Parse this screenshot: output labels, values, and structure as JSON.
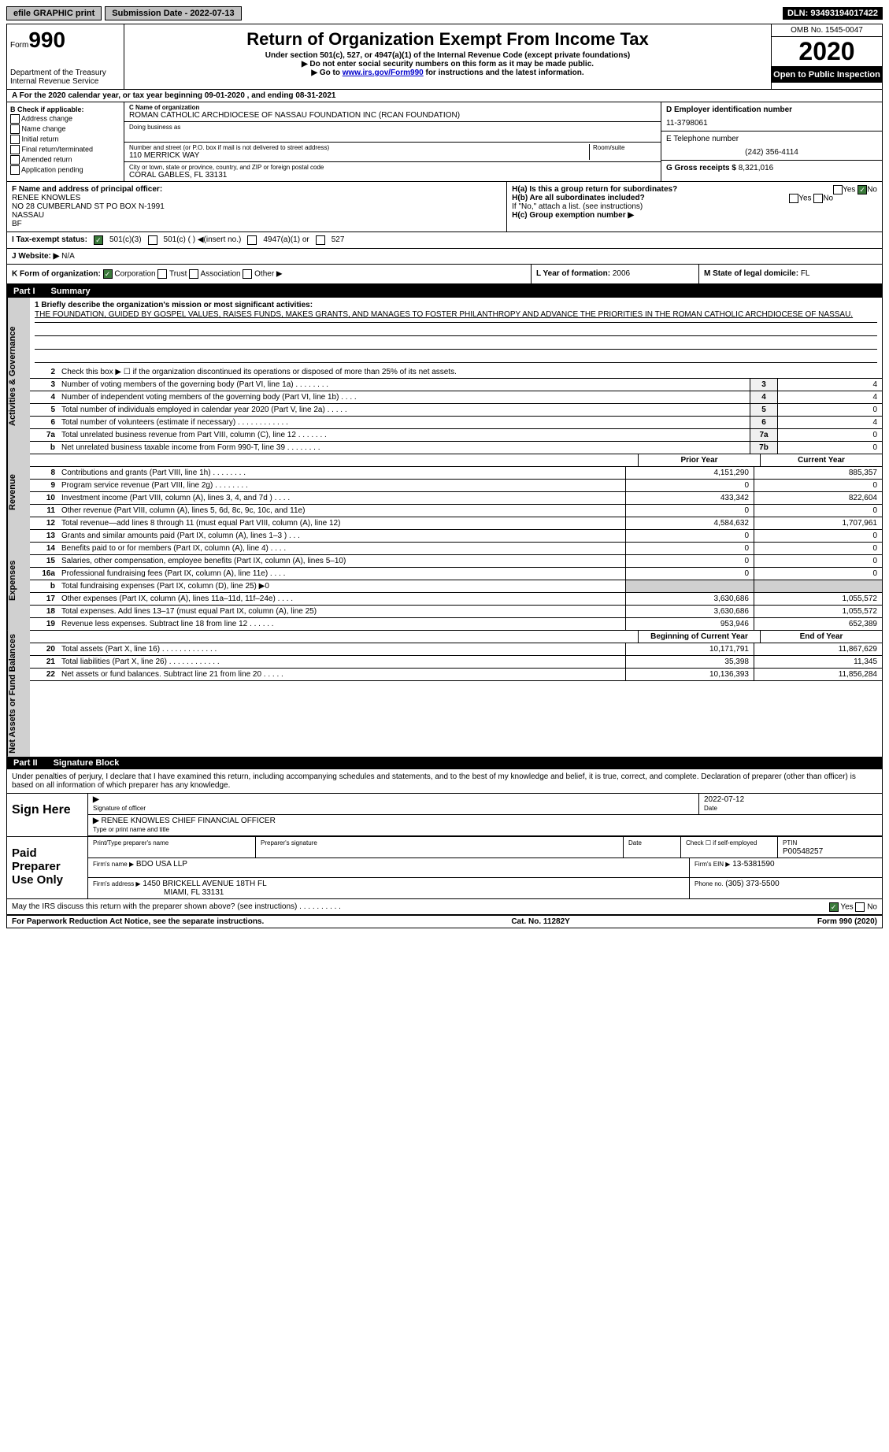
{
  "topbar": {
    "efile": "efile GRAPHIC print",
    "submission_label": "Submission Date - 2022-07-13",
    "dln": "DLN: 93493194017422"
  },
  "header": {
    "form_small": "Form",
    "form_num": "990",
    "dept": "Department of the Treasury",
    "irs": "Internal Revenue Service",
    "title": "Return of Organization Exempt From Income Tax",
    "sub1": "Under section 501(c), 527, or 4947(a)(1) of the Internal Revenue Code (except private foundations)",
    "sub2": "▶ Do not enter social security numbers on this form as it may be made public.",
    "sub3_prefix": "▶ Go to ",
    "sub3_link": "www.irs.gov/Form990",
    "sub3_suffix": " for instructions and the latest information.",
    "omb": "OMB No. 1545-0047",
    "year": "2020",
    "open": "Open to Public Inspection"
  },
  "period": "A For the 2020 calendar year, or tax year beginning 09-01-2020    , and ending 08-31-2021",
  "B": {
    "label": "B Check if applicable:",
    "items": [
      "Address change",
      "Name change",
      "Initial return",
      "Final return/terminated",
      "Amended return",
      "Application pending"
    ]
  },
  "C": {
    "name_label": "C Name of organization",
    "name": "ROMAN CATHOLIC ARCHDIOCESE OF NASSAU FOUNDATION INC (RCAN FOUNDATION)",
    "dba_label": "Doing business as",
    "street_label": "Number and street (or P.O. box if mail is not delivered to street address)",
    "room_label": "Room/suite",
    "street": "110 MERRICK WAY",
    "city_label": "City or town, state or province, country, and ZIP or foreign postal code",
    "city": "CORAL GABLES, FL  33131"
  },
  "D": {
    "label": "D Employer identification number",
    "value": "11-3798061"
  },
  "E": {
    "label": "E Telephone number",
    "value": "(242) 356-4114"
  },
  "G": {
    "label": "G Gross receipts $",
    "value": "8,321,016"
  },
  "F": {
    "label": "F  Name and address of principal officer:",
    "name": "RENEE KNOWLES",
    "addr1": "NO 28 CUMBERLAND ST PO BOX N-1991",
    "addr2": "NASSAU",
    "addr3": "BF"
  },
  "H": {
    "a_label": "H(a)  Is this a group return for subordinates?",
    "a_yes": "Yes",
    "a_no": "No",
    "b_label": "H(b)  Are all subordinates included?",
    "b_note": "If \"No,\" attach a list. (see instructions)",
    "c_label": "H(c)  Group exemption number ▶"
  },
  "I": {
    "label": "I    Tax-exempt status:",
    "opt1": "501(c)(3)",
    "opt2": "501(c) (  ) ◀(insert no.)",
    "opt3": "4947(a)(1) or",
    "opt4": "527"
  },
  "J": {
    "label": "J   Website: ▶",
    "value": "N/A"
  },
  "K": {
    "label": "K Form of organization:",
    "opts": [
      "Corporation",
      "Trust",
      "Association",
      "Other ▶"
    ]
  },
  "L": {
    "label": "L Year of formation:",
    "value": "2006"
  },
  "M": {
    "label": "M State of legal domicile:",
    "value": "FL"
  },
  "partI": {
    "title": "Part I",
    "subtitle": "Summary"
  },
  "mission": {
    "label": "1  Briefly describe the organization's mission or most significant activities:",
    "text": "THE FOUNDATION, GUIDED BY GOSPEL VALUES, RAISES FUNDS, MAKES GRANTS, AND MANAGES TO FOSTER PHILANTHROPY AND ADVANCE THE PRIORITIES IN THE ROMAN CATHOLIC ARCHDIOCESE OF NASSAU."
  },
  "gov_lines": {
    "l2": "Check this box ▶ ☐  if the organization discontinued its operations or disposed of more than 25% of its net assets.",
    "l3": {
      "text": "Number of voting members of the governing body (Part VI, line 1a)  .   .   .   .   .   .   .   .",
      "box": "3",
      "val": "4"
    },
    "l4": {
      "text": "Number of independent voting members of the governing body (Part VI, line 1b)  .   .   .   .",
      "box": "4",
      "val": "4"
    },
    "l5": {
      "text": "Total number of individuals employed in calendar year 2020 (Part V, line 2a)  .   .   .   .   .",
      "box": "5",
      "val": "0"
    },
    "l6": {
      "text": "Total number of volunteers (estimate if necessary)   .   .   .   .   .   .   .   .   .   .   .   .",
      "box": "6",
      "val": "4"
    },
    "l7a": {
      "text": "Total unrelated business revenue from Part VIII, column (C), line 12  .   .   .   .   .   .   .",
      "box": "7a",
      "val": "0"
    },
    "l7b": {
      "text": "Net unrelated business taxable income from Form 990-T, line 39  .   .   .   .   .   .   .   .",
      "box": "7b",
      "val": "0"
    }
  },
  "cols": {
    "prior": "Prior Year",
    "current": "Current Year",
    "begin": "Beginning of Current Year",
    "end": "End of Year"
  },
  "revenue": [
    {
      "n": "8",
      "t": "Contributions and grants (Part VIII, line 1h)   .   .   .   .   .   .   .   .",
      "p": "4,151,290",
      "c": "885,357"
    },
    {
      "n": "9",
      "t": "Program service revenue (Part VIII, line 2g)   .   .   .   .   .   .   .   .",
      "p": "0",
      "c": "0"
    },
    {
      "n": "10",
      "t": "Investment income (Part VIII, column (A), lines 3, 4, and 7d )   .   .   .   .",
      "p": "433,342",
      "c": "822,604"
    },
    {
      "n": "11",
      "t": "Other revenue (Part VIII, column (A), lines 5, 6d, 8c, 9c, 10c, and 11e)",
      "p": "0",
      "c": "0"
    },
    {
      "n": "12",
      "t": "Total revenue—add lines 8 through 11 (must equal Part VIII, column (A), line 12)",
      "p": "4,584,632",
      "c": "1,707,961"
    }
  ],
  "expenses": [
    {
      "n": "13",
      "t": "Grants and similar amounts paid (Part IX, column (A), lines 1–3 )   .   .   .",
      "p": "0",
      "c": "0"
    },
    {
      "n": "14",
      "t": "Benefits paid to or for members (Part IX, column (A), line 4)  .   .   .   .",
      "p": "0",
      "c": "0"
    },
    {
      "n": "15",
      "t": "Salaries, other compensation, employee benefits (Part IX, column (A), lines 5–10)",
      "p": "0",
      "c": "0"
    },
    {
      "n": "16a",
      "t": "Professional fundraising fees (Part IX, column (A), line 11e)  .   .   .   .",
      "p": "0",
      "c": "0"
    },
    {
      "n": "b",
      "t": "Total fundraising expenses (Part IX, column (D), line 25) ▶0",
      "p": "",
      "c": ""
    },
    {
      "n": "17",
      "t": "Other expenses (Part IX, column (A), lines 11a–11d, 11f–24e)   .   .   .   .",
      "p": "3,630,686",
      "c": "1,055,572"
    },
    {
      "n": "18",
      "t": "Total expenses. Add lines 13–17 (must equal Part IX, column (A), line 25)",
      "p": "3,630,686",
      "c": "1,055,572"
    },
    {
      "n": "19",
      "t": "Revenue less expenses. Subtract line 18 from line 12  .   .   .   .   .   .",
      "p": "953,946",
      "c": "652,389"
    }
  ],
  "netassets": [
    {
      "n": "20",
      "t": "Total assets (Part X, line 16)  .   .   .   .   .   .   .   .   .   .   .   .   .",
      "p": "10,171,791",
      "c": "11,867,629"
    },
    {
      "n": "21",
      "t": "Total liabilities (Part X, line 26)  .   .   .   .   .   .   .   .   .   .   .   .",
      "p": "35,398",
      "c": "11,345"
    },
    {
      "n": "22",
      "t": "Net assets or fund balances. Subtract line 21 from line 20  .   .   .   .   .",
      "p": "10,136,393",
      "c": "11,856,284"
    }
  ],
  "partII": {
    "title": "Part II",
    "subtitle": "Signature Block"
  },
  "sig": {
    "declaration": "Under penalties of perjury, I declare that I have examined this return, including accompanying schedules and statements, and to the best of my knowledge and belief, it is true, correct, and complete. Declaration of preparer (other than officer) is based on all information of which preparer has any knowledge.",
    "sign_here": "Sign Here",
    "sig_officer": "Signature of officer",
    "date": "Date",
    "date_val": "2022-07-12",
    "name_title": "RENEE KNOWLES  CHIEF FINANCIAL OFFICER",
    "type_name": "Type or print name and title",
    "paid": "Paid Preparer Use Only",
    "prep_name_label": "Print/Type preparer's name",
    "prep_sig_label": "Preparer's signature",
    "prep_date": "Date",
    "check_if": "Check ☐ if self-employed",
    "ptin_label": "PTIN",
    "ptin": "P00548257",
    "firm_name_label": "Firm's name    ▶",
    "firm_name": "BDO USA LLP",
    "firm_ein_label": "Firm's EIN ▶",
    "firm_ein": "13-5381590",
    "firm_addr_label": "Firm's address ▶",
    "firm_addr": "1450 BRICKELL AVENUE 18TH FL",
    "firm_city": "MIAMI, FL  33131",
    "phone_label": "Phone no.",
    "phone": "(305) 373-5500",
    "discuss": "May the IRS discuss this return with the preparer shown above? (see instructions)   .   .   .   .   .   .   .   .   .   .",
    "yes": "Yes",
    "no": "No"
  },
  "footer": {
    "left": "For Paperwork Reduction Act Notice, see the separate instructions.",
    "mid": "Cat. No. 11282Y",
    "right": "Form 990 (2020)"
  },
  "side_labels": {
    "gov": "Activities & Governance",
    "rev": "Revenue",
    "exp": "Expenses",
    "net": "Net Assets or Fund Balances"
  }
}
